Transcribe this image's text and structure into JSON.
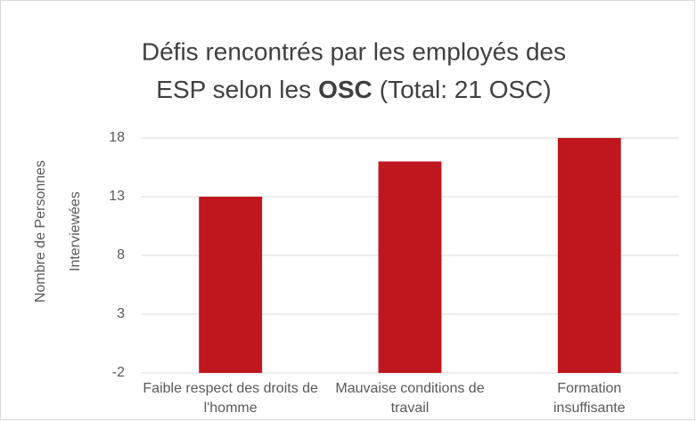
{
  "chart_data": {
    "type": "bar",
    "title": [
      "Défis rencontrés par les employés des",
      "ESP selon les",
      "OSC",
      "(Total: 21 OSC)"
    ],
    "y_label": [
      "Nombre de Personnes",
      "Interviewées"
    ],
    "categories": [
      "Faible respect des droits de l'homme",
      "Mauvaise conditions de travail",
      "Formation insuffisante"
    ],
    "values": [
      13,
      16,
      18
    ],
    "color": "#c0171f",
    "ylim": [
      -2,
      18
    ],
    "yticks": [
      -2,
      3,
      8,
      13,
      18
    ],
    "grid": true
  }
}
